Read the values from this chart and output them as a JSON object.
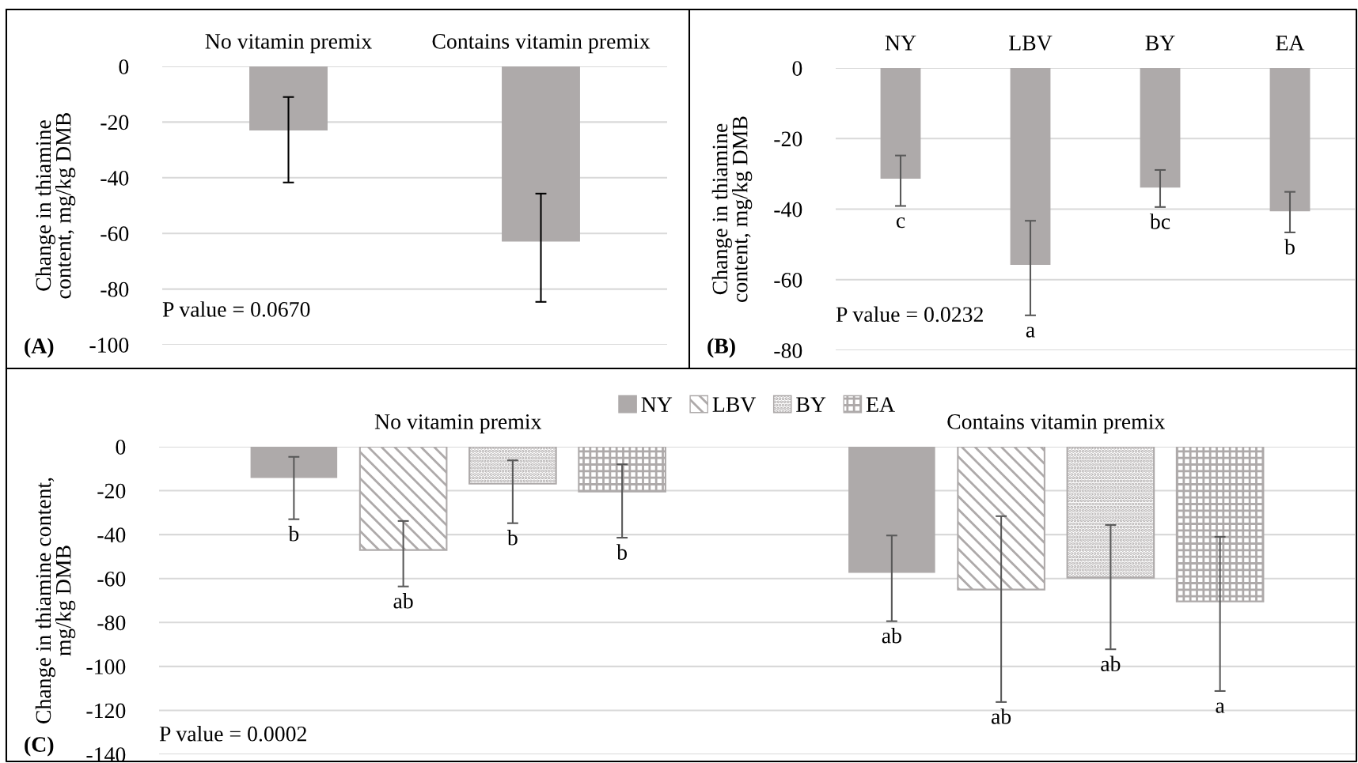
{
  "chart_data": [
    {
      "type": "bar",
      "categories": [
        "No vitamin premix",
        "Contains vitamin premix"
      ],
      "values": [
        -23.0,
        -62.9
      ],
      "errors": [
        [
          -41.7,
          -11.0
        ],
        [
          -84.6,
          -45.7
        ]
      ],
      "color": "#aeaaaa",
      "ylabel": "Change in thiamine\ncontent, mg/kg DMB",
      "ylim": [
        -100,
        0
      ],
      "yticks": [
        0,
        -20,
        -40,
        -60,
        -80,
        -100
      ],
      "grid": "y",
      "annotations": [
        "P value = 0.0670",
        "(A)"
      ]
    },
    {
      "type": "bar",
      "categories": [
        "NY",
        "LBV",
        "BY",
        "EA"
      ],
      "values": [
        -31.4,
        -55.8,
        -33.9,
        -40.6
      ],
      "errors": [
        [
          -39.1,
          -24.8
        ],
        [
          -70.1,
          -43.3
        ],
        [
          -39.4,
          -28.9
        ],
        [
          -46.6,
          -35.1
        ]
      ],
      "value_labels": [
        "c",
        "a",
        "bc",
        "b"
      ],
      "color": "#aeaaaa",
      "ylabel": "Change in thiamine\ncontent, mg/kg DMB",
      "ylim": [
        -80,
        0
      ],
      "yticks": [
        0,
        -20,
        -40,
        -60,
        -80
      ],
      "grid": "y",
      "annotations": [
        "P value = 0.0232",
        "(B)"
      ]
    },
    {
      "type": "bar",
      "categories": [
        "No vitamin premix",
        "Contains vitamin premix"
      ],
      "series": [
        {
          "name": "NY",
          "color": "#aeaaaa",
          "values": [
            -14.2,
            -57.4
          ],
          "errors": [
            [
              -33.0,
              -4.6
            ],
            [
              -79.4,
              -40.4
            ]
          ]
        },
        {
          "name": "LBV",
          "color": "#aeaaaa",
          "values": [
            -47.0,
            -65.0
          ],
          "errors": [
            [
              -63.6,
              -33.8
            ],
            [
              -116.2,
              -31.6
            ]
          ]
        },
        {
          "name": "BY",
          "color": "#aeaaaa",
          "values": [
            -16.8,
            -59.6
          ],
          "errors": [
            [
              -34.8,
              -6.2
            ],
            [
              -92.2,
              -35.6
            ]
          ]
        },
        {
          "name": "EA",
          "color": "#aeaaaa",
          "values": [
            -20.4,
            -70.4
          ],
          "errors": [
            [
              -41.4,
              -8.0
            ],
            [
              -111.2,
              -41.0
            ]
          ]
        }
      ],
      "ylabel": "Change in thiamine content,\nmg/kg DMB",
      "ylim": [
        -140,
        0
      ],
      "yticks": [
        0,
        -20,
        -40,
        -60,
        -80,
        -100,
        -120,
        -140
      ],
      "grid": "y",
      "legend": "top",
      "annotations": [
        "P value = 0.0002",
        "(C)",
        "b",
        "ab",
        "ab",
        "ab",
        "b",
        "ab",
        "b",
        "a"
      ]
    }
  ]
}
